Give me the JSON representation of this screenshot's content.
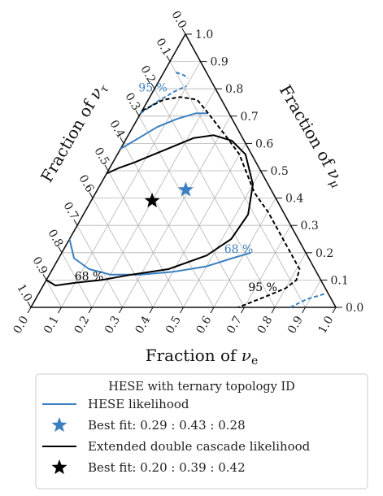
{
  "chart_data": {
    "type": "ternary",
    "axes": {
      "bottom": {
        "label": "Fraction of νe",
        "label_prefix": "Fraction of ",
        "label_var": "ν",
        "label_sub": "e"
      },
      "right": {
        "label": "Fraction of νμ",
        "label_prefix": "Fraction of ",
        "label_var": "ν",
        "label_sub": "μ"
      },
      "left": {
        "label": "Fraction of ντ",
        "label_prefix": "Fraction of ",
        "label_var": "ν",
        "label_sub": "τ"
      }
    },
    "ticks": [
      "0.0",
      "0.1",
      "0.2",
      "0.3",
      "0.4",
      "0.5",
      "0.6",
      "0.7",
      "0.8",
      "0.9",
      "1.0"
    ],
    "tick_values": [
      0,
      0.1,
      0.2,
      0.3,
      0.4,
      0.5,
      0.6,
      0.7,
      0.8,
      0.9,
      1.0
    ],
    "grid": true,
    "colors": {
      "hese": "#3a7fc1",
      "double_cascade": "#000000",
      "grid": "#b5b5b5"
    },
    "series": [
      {
        "name": "HESE likelihood",
        "kind": "contour-68",
        "label": "68 %",
        "points": [
          [
            0.0,
            0.25
          ],
          [
            0.05,
            0.18
          ],
          [
            0.12,
            0.14
          ],
          [
            0.2,
            0.12
          ],
          [
            0.3,
            0.12
          ],
          [
            0.4,
            0.13
          ],
          [
            0.5,
            0.15
          ],
          [
            0.57,
            0.18
          ],
          [
            0.62,
            0.2
          ]
        ],
        "label_at": [
          0.58,
          0.2
        ]
      },
      {
        "name": "HESE likelihood",
        "kind": "contour-68-upper",
        "points": [
          [
            0.0,
            0.58
          ],
          [
            0.04,
            0.62
          ],
          [
            0.08,
            0.66
          ],
          [
            0.13,
            0.69
          ],
          [
            0.18,
            0.71
          ],
          [
            0.22,
            0.71
          ]
        ]
      },
      {
        "name": "HESE likelihood",
        "kind": "contour-95",
        "label": "95 %",
        "points": [
          [
            0.0,
            0.71
          ],
          [
            0.03,
            0.75
          ],
          [
            0.07,
            0.79
          ],
          [
            0.1,
            0.81
          ]
        ],
        "label_at": [
          0.0,
          0.79
        ]
      },
      {
        "name": "HESE likelihood",
        "kind": "contour-95-tip",
        "points": [
          [
            0.04,
            0.86
          ],
          [
            0.07,
            0.85
          ],
          [
            0.09,
            0.84
          ]
        ]
      },
      {
        "name": "HESE likelihood",
        "kind": "contour-95-bottom",
        "points": [
          [
            0.85,
            0.0
          ],
          [
            0.89,
            0.03
          ],
          [
            0.94,
            0.05
          ]
        ]
      },
      {
        "name": "Extended double cascade likelihood",
        "kind": "contour-68",
        "label": "68 %",
        "points": [
          [
            0.0,
            0.1
          ],
          [
            0.04,
            0.08
          ],
          [
            0.1,
            0.09
          ],
          [
            0.18,
            0.1
          ],
          [
            0.27,
            0.12
          ],
          [
            0.38,
            0.14
          ],
          [
            0.48,
            0.19
          ],
          [
            0.53,
            0.25
          ],
          [
            0.54,
            0.34
          ],
          [
            0.5,
            0.45
          ],
          [
            0.42,
            0.56
          ],
          [
            0.35,
            0.61
          ],
          [
            0.28,
            0.63
          ],
          [
            0.22,
            0.62
          ],
          [
            0.17,
            0.59
          ],
          [
            0.12,
            0.56
          ],
          [
            0.07,
            0.53
          ],
          [
            0.03,
            0.51
          ],
          [
            0.0,
            0.49
          ]
        ],
        "label_at": [
          0.14,
          0.1
        ]
      },
      {
        "name": "Extended double cascade likelihood",
        "kind": "contour-95",
        "label": "95 %",
        "dashed": true,
        "points": [
          [
            0.0,
            0.72
          ],
          [
            0.05,
            0.76
          ],
          [
            0.1,
            0.77
          ],
          [
            0.16,
            0.76
          ],
          [
            0.21,
            0.72
          ],
          [
            0.27,
            0.67
          ],
          [
            0.33,
            0.62
          ],
          [
            0.4,
            0.56
          ],
          [
            0.46,
            0.49
          ],
          [
            0.52,
            0.42
          ],
          [
            0.6,
            0.35
          ],
          [
            0.67,
            0.28
          ],
          [
            0.72,
            0.23
          ],
          [
            0.77,
            0.18
          ],
          [
            0.81,
            0.14
          ],
          [
            0.82,
            0.1
          ],
          [
            0.8,
            0.07
          ],
          [
            0.75,
            0.04
          ],
          [
            0.68,
            0.0
          ]
        ],
        "label_at": [
          0.73,
          0.06
        ]
      }
    ],
    "best_fits": [
      {
        "name": "HESE",
        "coords": [
          0.29,
          0.43,
          0.28
        ],
        "color": "#3a7fc1"
      },
      {
        "name": "Extended double cascade",
        "coords": [
          0.2,
          0.39,
          0.42
        ],
        "color": "#000000"
      }
    ],
    "legend": {
      "title": "HESE with ternary topology ID",
      "placement": "bottom",
      "entries": [
        {
          "type": "line",
          "color": "#3a7fc1",
          "label": "HESE likelihood"
        },
        {
          "type": "star",
          "color": "#3a7fc1",
          "label": "Best fit: 0.29 : 0.43 : 0.28"
        },
        {
          "type": "line",
          "color": "#000000",
          "label": "Extended double cascade likelihood"
        },
        {
          "type": "star",
          "color": "#000000",
          "label": "Best fit: 0.20 : 0.39 : 0.42"
        }
      ]
    }
  }
}
